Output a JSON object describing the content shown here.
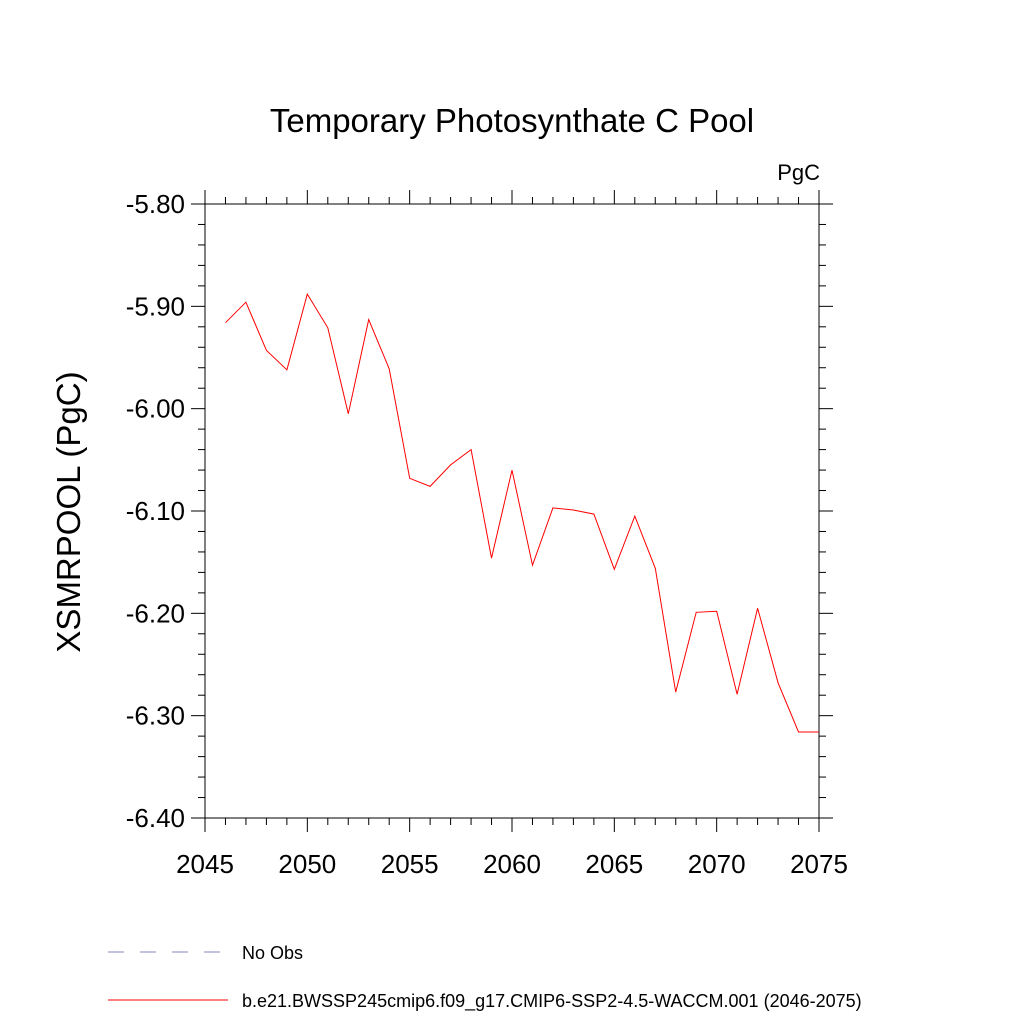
{
  "chart_data": {
    "type": "line",
    "title": "Temporary Photosynthate C Pool",
    "units_label": "PgC",
    "xlabel": "",
    "ylabel": "XSMRPOOL  (PgC)",
    "xlim": [
      2045,
      2075
    ],
    "ylim": [
      -6.4,
      -5.8
    ],
    "x_ticks": [
      2045,
      2050,
      2055,
      2060,
      2065,
      2070,
      2075
    ],
    "x_tick_labels": [
      "2045",
      "2050",
      "2055",
      "2060",
      "2065",
      "2070",
      "2075"
    ],
    "y_ticks": [
      -5.8,
      -5.9,
      -6.0,
      -6.1,
      -6.2,
      -6.3,
      -6.4
    ],
    "y_tick_labels": [
      "-5.80",
      "-5.90",
      "-6.00",
      "-6.10",
      "-6.20",
      "-6.30",
      "-6.40"
    ],
    "grid": false,
    "legend_position": "bottom",
    "series": [
      {
        "name": "b.e21.BWSSP245cmip6.f09_g17.CMIP6-SSP2-4.5-WACCM.001 (2046-2075)",
        "color": "#ff0000",
        "x": [
          2046,
          2047,
          2048,
          2049,
          2050,
          2051,
          2052,
          2053,
          2054,
          2055,
          2056,
          2057,
          2058,
          2059,
          2060,
          2061,
          2062,
          2063,
          2064,
          2065,
          2066,
          2067,
          2068,
          2069,
          2070,
          2071,
          2072,
          2073,
          2074,
          2075
        ],
        "y": [
          -5.916,
          -5.896,
          -5.943,
          -5.962,
          -5.888,
          -5.921,
          -6.005,
          -5.913,
          -5.961,
          -6.068,
          -6.076,
          -6.055,
          -6.04,
          -6.146,
          -6.06,
          -6.153,
          -6.097,
          -6.099,
          -6.103,
          -6.157,
          -6.105,
          -6.156,
          -6.277,
          -6.199,
          -6.198,
          -6.279,
          -6.195,
          -6.268,
          -6.316,
          -6.316
        ]
      }
    ],
    "legend": [
      {
        "label": "No Obs",
        "color": "#8080c0",
        "style": "dashed"
      },
      {
        "label": "b.e21.BWSSP245cmip6.f09_g17.CMIP6-SSP2-4.5-WACCM.001 (2046-2075)",
        "color": "#ff0000",
        "style": "solid"
      }
    ]
  }
}
